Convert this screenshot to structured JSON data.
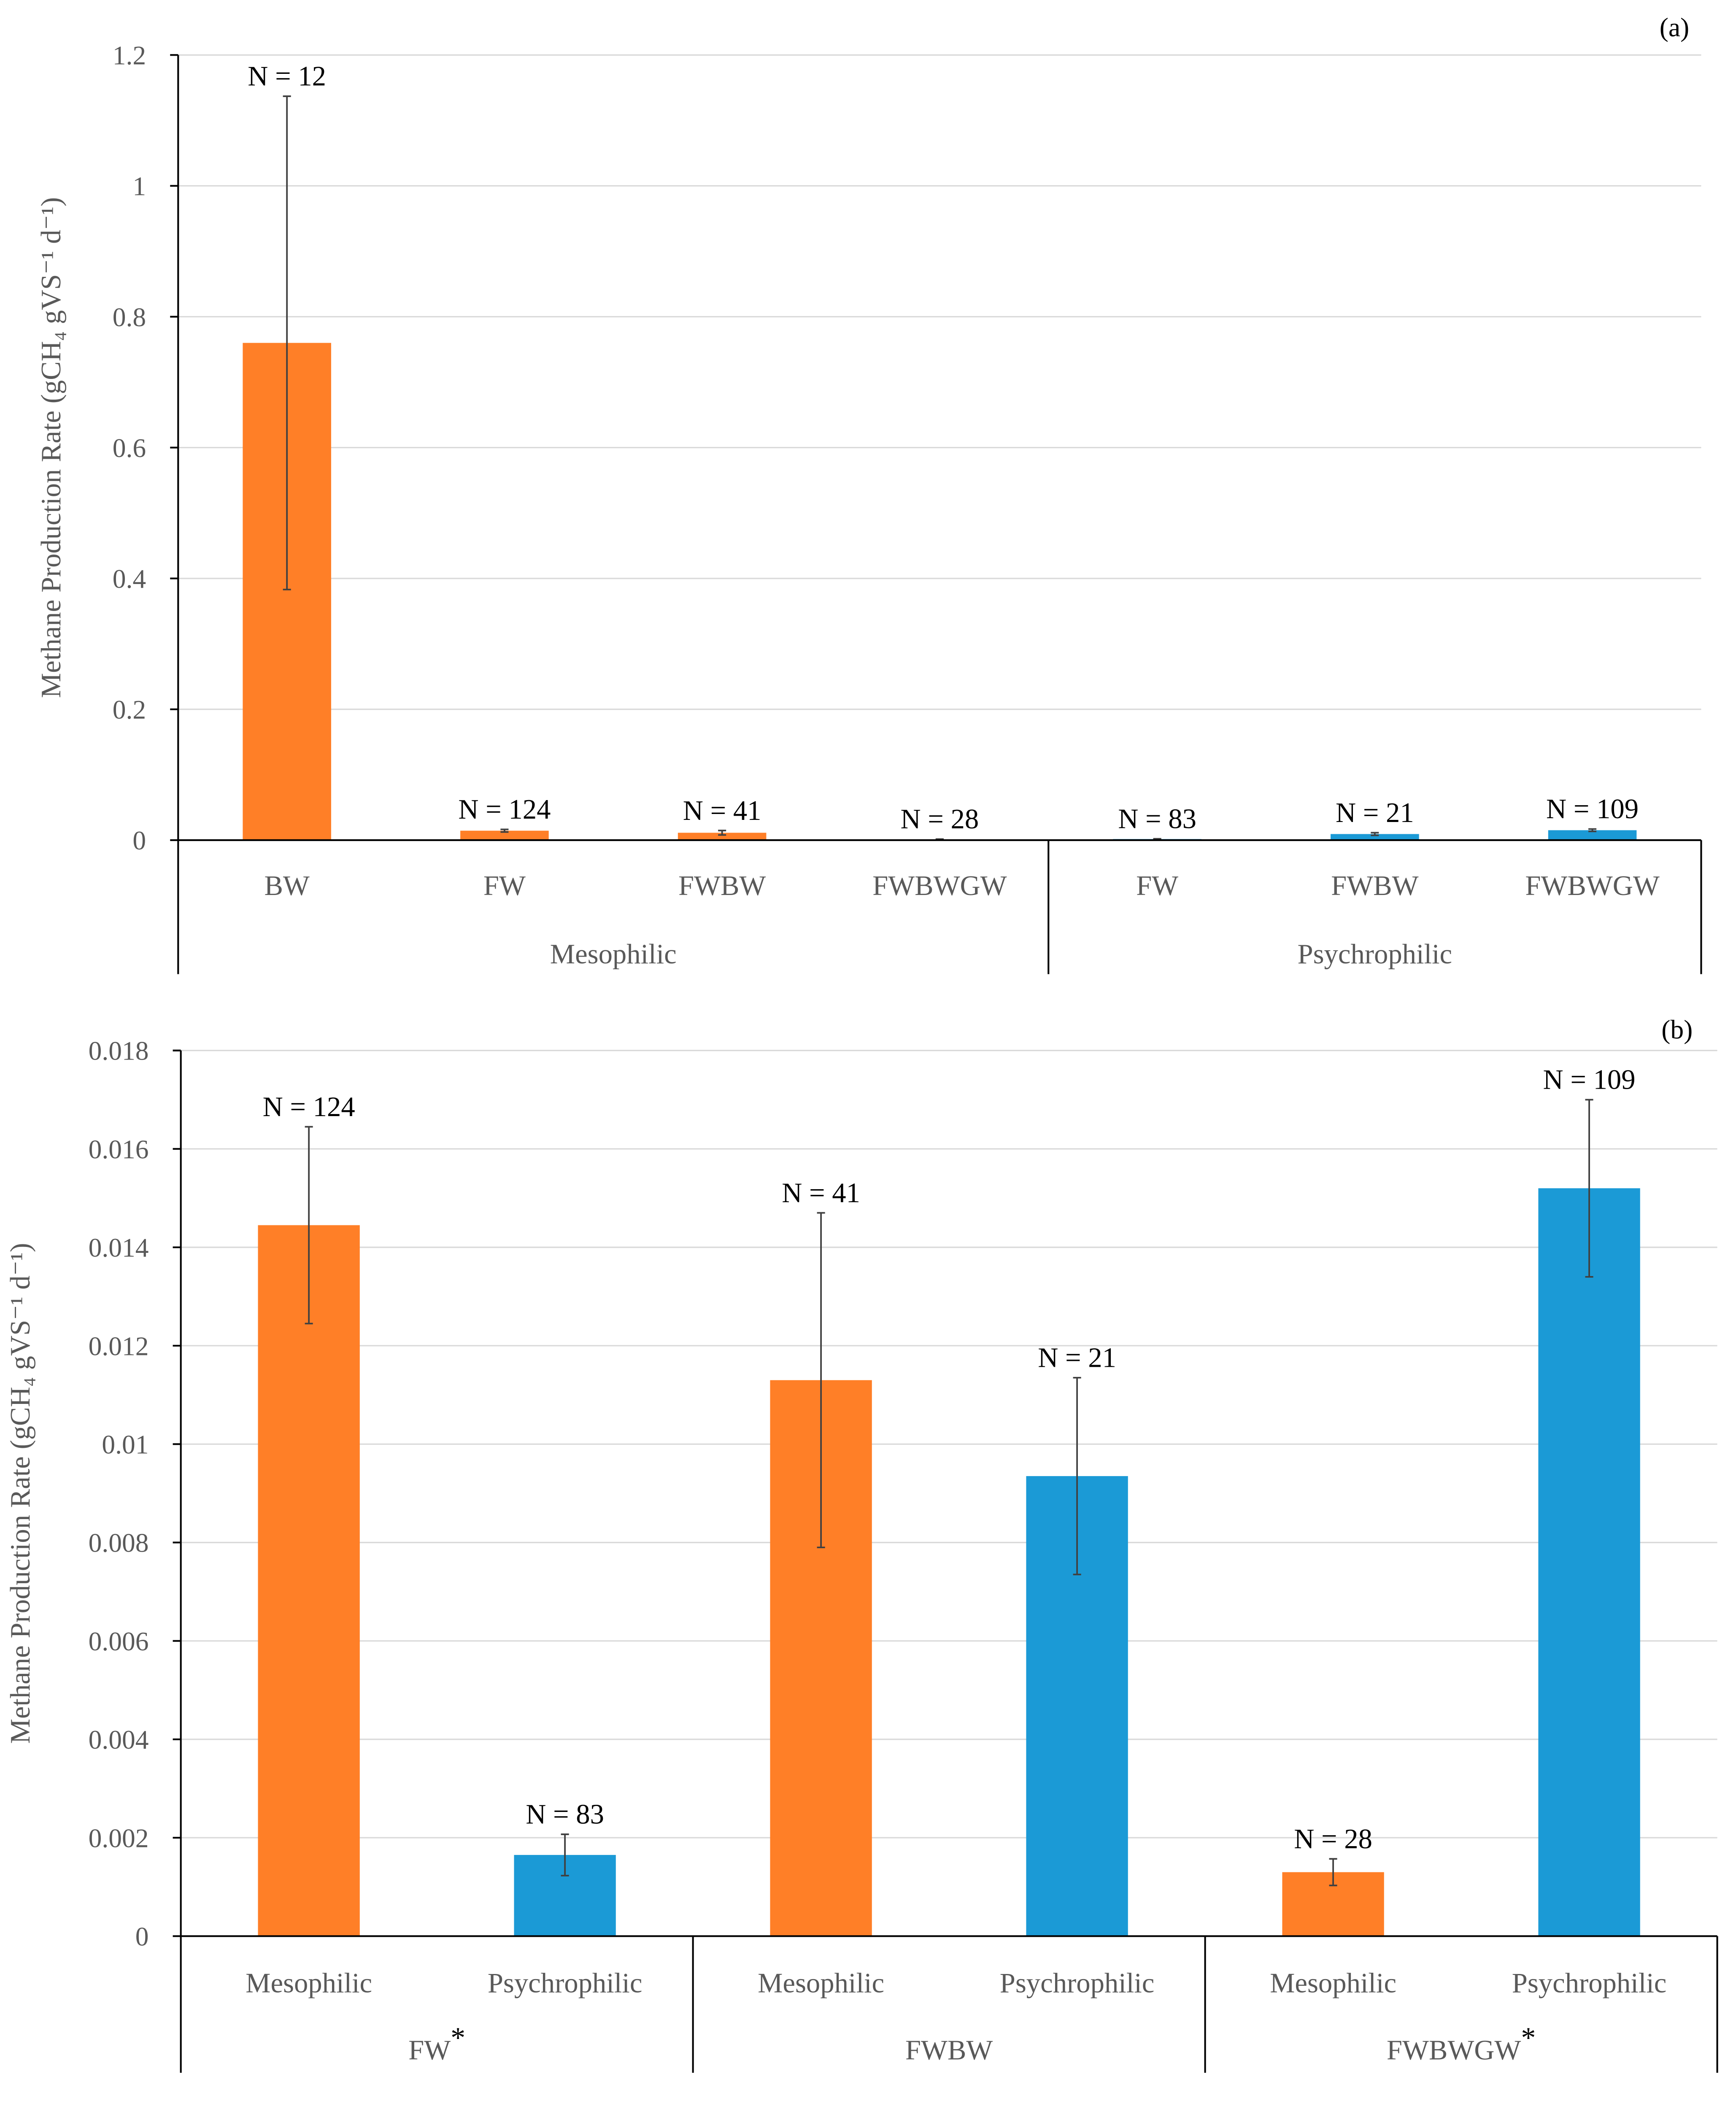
{
  "colors": {
    "mesophilic": "#FF7F27",
    "psychrophilic": "#1B9AD6"
  },
  "chart_data": [
    {
      "type": "bar",
      "panel_label": "(a)",
      "ylabel": "Methane Production Rate (gCH₄ gVS⁻¹ d⁻¹)",
      "ylim": [
        0,
        1.2
      ],
      "yticks": [
        "0",
        "0.2",
        "0.4",
        "0.6",
        "0.8",
        "1",
        "1.2"
      ],
      "ytick_values": [
        0,
        0.2,
        0.4,
        0.6,
        0.8,
        1,
        1.2
      ],
      "grid": true,
      "groups": [
        {
          "label": "Mesophilic",
          "asterisk": "",
          "span": 4
        },
        {
          "label": "Psychrophilic",
          "asterisk": "",
          "span": 3
        }
      ],
      "bars": [
        {
          "category": "BW",
          "temp": "mesophilic",
          "value": 0.76,
          "error": 0.377,
          "n_label": "N = 12"
        },
        {
          "category": "FW",
          "temp": "mesophilic",
          "value": 0.01445,
          "error": 0.002,
          "n_label": "N = 124"
        },
        {
          "category": "FWBW",
          "temp": "mesophilic",
          "value": 0.0113,
          "error": 0.0034,
          "n_label": "N = 41"
        },
        {
          "category": "FWBWGW",
          "temp": "mesophilic",
          "value": 0.0013,
          "error": 0.00027,
          "n_label": "N = 28"
        },
        {
          "category": "FW",
          "temp": "psychrophilic",
          "value": 0.00165,
          "error": 0.00042,
          "n_label": "N = 83"
        },
        {
          "category": "FWBW",
          "temp": "psychrophilic",
          "value": 0.00935,
          "error": 0.002,
          "n_label": "N = 21"
        },
        {
          "category": "FWBWGW",
          "temp": "psychrophilic",
          "value": 0.0152,
          "error": 0.0018,
          "n_label": "N = 109"
        }
      ]
    },
    {
      "type": "bar",
      "panel_label": "(b)",
      "ylabel": "Methane Production Rate (gCH₄ gVS⁻¹ d⁻¹)",
      "ylim": [
        0,
        0.018
      ],
      "yticks": [
        "0",
        "0.002",
        "0.004",
        "0.006",
        "0.008",
        "0.01",
        "0.012",
        "0.014",
        "0.016",
        "0.018"
      ],
      "ytick_values": [
        0,
        0.002,
        0.004,
        0.006,
        0.008,
        0.01,
        0.012,
        0.014,
        0.016,
        0.018
      ],
      "grid": true,
      "groups": [
        {
          "label": "FW",
          "asterisk": "*",
          "span": 2
        },
        {
          "label": "FWBW",
          "asterisk": "",
          "span": 2
        },
        {
          "label": "FWBWGW",
          "asterisk": "*",
          "span": 2
        }
      ],
      "bars": [
        {
          "category": "Mesophilic",
          "temp": "mesophilic",
          "value": 0.01445,
          "error": 0.002,
          "n_label": "N = 124"
        },
        {
          "category": "Psychrophilic",
          "temp": "psychrophilic",
          "value": 0.00165,
          "error": 0.00042,
          "n_label": "N = 83"
        },
        {
          "category": "Mesophilic",
          "temp": "mesophilic",
          "value": 0.0113,
          "error": 0.0034,
          "n_label": "N = 41"
        },
        {
          "category": "Psychrophilic",
          "temp": "psychrophilic",
          "value": 0.00935,
          "error": 0.002,
          "n_label": "N = 21"
        },
        {
          "category": "Mesophilic",
          "temp": "mesophilic",
          "value": 0.0013,
          "error": 0.00027,
          "n_label": "N = 28"
        },
        {
          "category": "Psychrophilic",
          "temp": "psychrophilic",
          "value": 0.0152,
          "error": 0.0018,
          "n_label": "N = 109"
        }
      ]
    }
  ]
}
